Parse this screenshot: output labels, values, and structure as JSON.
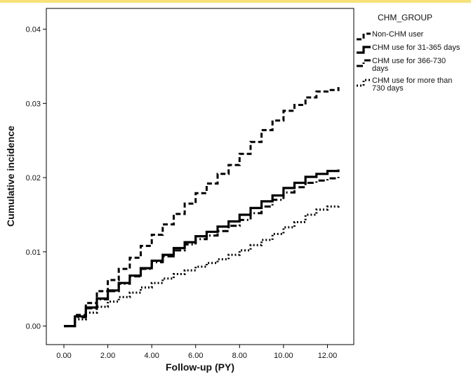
{
  "chart_data": {
    "type": "line",
    "title": "",
    "xlabel": "Follow-up (PY)",
    "ylabel": "Cumulative incidence",
    "xlim": [
      -0.8,
      13.2
    ],
    "ylim": [
      -0.0025,
      0.0428
    ],
    "xticks": [
      "0.00",
      "2.00",
      "4.00",
      "6.00",
      "8.00",
      "10.00",
      "12.00"
    ],
    "yticks": [
      "0.00",
      "0.01",
      "0.02",
      "0.03",
      "0.04"
    ],
    "grid": false,
    "legend": {
      "title": "CHM_GROUP",
      "placement": "right",
      "entries": [
        [
          "Non-CHM user"
        ],
        [
          "CHM use for 31-365 days"
        ],
        [
          "CHM use for 366-730",
          "days"
        ],
        [
          "CHM use for more than",
          "730 days"
        ]
      ]
    },
    "series": [
      {
        "name": "Non-CHM user",
        "style": "dashed",
        "x": [
          0,
          0.5,
          1,
          1.5,
          2,
          2.5,
          3,
          3.5,
          4,
          4.5,
          5,
          5.5,
          6,
          6.5,
          7,
          7.5,
          8,
          8.5,
          9,
          9.5,
          10,
          10.5,
          11,
          11.5,
          12,
          12.5
        ],
        "y": [
          0,
          0.0015,
          0.0031,
          0.0047,
          0.0062,
          0.0077,
          0.0092,
          0.0108,
          0.0123,
          0.0137,
          0.0151,
          0.0165,
          0.0179,
          0.0192,
          0.0205,
          0.0217,
          0.0232,
          0.0248,
          0.0264,
          0.0277,
          0.029,
          0.0298,
          0.0308,
          0.0316,
          0.0318,
          0.0322
        ]
      },
      {
        "name": "CHM use for 31-365 days",
        "style": "solid",
        "x": [
          0,
          0.5,
          1,
          1.5,
          2,
          2.5,
          3,
          3.5,
          4,
          4.5,
          5,
          5.5,
          6,
          6.5,
          7,
          7.5,
          8,
          8.5,
          9,
          9.5,
          10,
          10.5,
          11,
          11.5,
          12,
          12.5
        ],
        "y": [
          0,
          0.0013,
          0.0025,
          0.0037,
          0.0048,
          0.0058,
          0.0068,
          0.0078,
          0.0088,
          0.0096,
          0.0105,
          0.0113,
          0.0121,
          0.0127,
          0.0134,
          0.0141,
          0.015,
          0.0159,
          0.0168,
          0.0176,
          0.0186,
          0.0193,
          0.0201,
          0.0205,
          0.0209,
          0.0211
        ]
      },
      {
        "name": "CHM use for 366-730 days",
        "style": "dash-dot",
        "x": [
          0,
          0.5,
          1,
          1.5,
          2,
          2.5,
          3,
          3.5,
          4,
          4.5,
          5,
          5.5,
          6,
          6.5,
          7,
          7.5,
          8,
          8.5,
          9,
          9.5,
          10,
          10.5,
          11,
          11.5,
          12,
          12.5
        ],
        "y": [
          0,
          0.0012,
          0.0024,
          0.0036,
          0.0047,
          0.0057,
          0.0067,
          0.0077,
          0.0086,
          0.0094,
          0.0102,
          0.011,
          0.0117,
          0.0122,
          0.0128,
          0.0135,
          0.0143,
          0.0152,
          0.0161,
          0.017,
          0.018,
          0.0187,
          0.0193,
          0.0196,
          0.0199,
          0.0201
        ]
      },
      {
        "name": "CHM use for more than 730 days",
        "style": "dotted",
        "x": [
          0,
          0.5,
          1,
          1.5,
          2,
          2.5,
          3,
          3.5,
          4,
          4.5,
          5,
          5.5,
          6,
          6.5,
          7,
          7.5,
          8,
          8.5,
          9,
          9.5,
          10,
          10.5,
          11,
          11.5,
          12,
          12.5
        ],
        "y": [
          0,
          0.0009,
          0.0018,
          0.0026,
          0.0033,
          0.0039,
          0.0045,
          0.0052,
          0.0058,
          0.0064,
          0.007,
          0.0075,
          0.008,
          0.0085,
          0.009,
          0.0096,
          0.0102,
          0.0109,
          0.0116,
          0.0124,
          0.0133,
          0.014,
          0.015,
          0.0157,
          0.0161,
          0.0164
        ]
      }
    ]
  }
}
